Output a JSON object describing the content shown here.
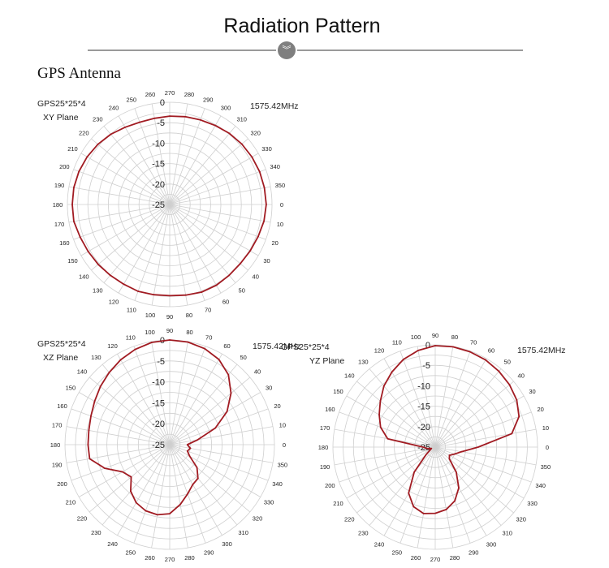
{
  "header": {
    "title": "Radiation Pattern",
    "badge_icon": "double-chevron-down-icon"
  },
  "section": {
    "title": "GPS Antenna"
  },
  "colors": {
    "trace": "#a11b22",
    "grid": "#cfcfcf",
    "header_line": "#9a9a9a"
  },
  "chart_data": [
    {
      "type": "polar",
      "label": "GPS25*25*4",
      "plane": "XY Plane",
      "frequency": "1575.42MHz",
      "radial_ticks": [
        0,
        -5,
        -10,
        -15,
        -20,
        -25
      ],
      "rlim": [
        -25,
        0
      ],
      "angle_ticks": [
        0,
        10,
        20,
        30,
        40,
        50,
        60,
        70,
        80,
        90,
        100,
        110,
        120,
        130,
        140,
        150,
        160,
        170,
        180,
        190,
        200,
        210,
        220,
        230,
        240,
        250,
        260,
        270,
        280,
        290,
        300,
        310,
        320,
        330,
        340,
        350
      ],
      "angle_orientation": "0 at right, increasing clockwise",
      "grid": true,
      "series": [
        {
          "angles": [
            0,
            10,
            20,
            30,
            40,
            50,
            60,
            70,
            80,
            90,
            100,
            110,
            120,
            130,
            140,
            150,
            160,
            170,
            180,
            190,
            200,
            210,
            220,
            230,
            240,
            250,
            260,
            270,
            280,
            290,
            300,
            310,
            320,
            330,
            340,
            350
          ],
          "gain_dbi": [
            -1.4,
            -1.6,
            -2.0,
            -2.3,
            -2.5,
            -2.4,
            -2.2,
            -2.2,
            -2.5,
            -2.7,
            -2.6,
            -2.4,
            -2.5,
            -2.4,
            -2.2,
            -2.0,
            -1.7,
            -1.2,
            -1.2,
            -1.2,
            -1.4,
            -1.7,
            -2.1,
            -2.6,
            -3.2,
            -3.6,
            -3.6,
            -3.4,
            -3.2,
            -3.0,
            -2.7,
            -2.3,
            -2.0,
            -1.8,
            -1.6,
            -1.5
          ]
        }
      ]
    },
    {
      "type": "polar",
      "label": "GPS25*25*4",
      "plane": "XZ Plane",
      "frequency": "1575.42MHz",
      "radial_ticks": [
        0,
        -5,
        -10,
        -15,
        -20,
        -25
      ],
      "rlim": [
        -25,
        0
      ],
      "angle_ticks": [
        0,
        10,
        20,
        30,
        40,
        50,
        60,
        70,
        80,
        90,
        100,
        110,
        120,
        130,
        140,
        150,
        160,
        170,
        180,
        190,
        200,
        210,
        220,
        230,
        240,
        250,
        260,
        270,
        280,
        290,
        300,
        310,
        320,
        330,
        340,
        350
      ],
      "angle_orientation": "0 at right, increasing counter-clockwise",
      "grid": true,
      "series": [
        {
          "angles": [
            0,
            10,
            20,
            30,
            40,
            50,
            60,
            70,
            80,
            90,
            100,
            110,
            120,
            130,
            140,
            150,
            160,
            170,
            180,
            190,
            200,
            210,
            220,
            230,
            240,
            250,
            260,
            270,
            280,
            290,
            300,
            310,
            320,
            330,
            340,
            350
          ],
          "gain_dbi": [
            -20.8,
            -18.2,
            -13.4,
            -9.2,
            -5.9,
            -3.2,
            -1.5,
            -0.6,
            -0.1,
            0.0,
            -0.2,
            -0.8,
            -1.6,
            -2.5,
            -3.4,
            -4.3,
            -5.0,
            -5.4,
            -5.5,
            -5.6,
            -8.5,
            -12.0,
            -13.0,
            -10.5,
            -9.0,
            -8.2,
            -8.0,
            -8.5,
            -10.5,
            -12.5,
            -14.0,
            -14.5,
            -16.5,
            -19.5,
            -20.5,
            -20.0
          ]
        }
      ]
    },
    {
      "type": "polar",
      "label": "GPS25*25*4",
      "plane": "YZ Plane",
      "frequency": "1575.42MHz",
      "radial_ticks": [
        0,
        -5,
        -10,
        -15,
        -20,
        -25
      ],
      "rlim": [
        -25,
        0
      ],
      "angle_ticks": [
        0,
        10,
        20,
        30,
        40,
        50,
        60,
        70,
        80,
        90,
        100,
        110,
        120,
        130,
        140,
        150,
        160,
        170,
        180,
        190,
        200,
        210,
        220,
        230,
        240,
        250,
        260,
        270,
        280,
        290,
        300,
        310,
        320,
        330,
        340,
        350
      ],
      "angle_orientation": "0 at right, increasing counter-clockwise",
      "grid": true,
      "series": [
        {
          "angles": [
            0,
            10,
            20,
            30,
            40,
            50,
            60,
            70,
            80,
            90,
            100,
            110,
            120,
            130,
            140,
            150,
            160,
            170,
            180,
            190,
            200,
            210,
            220,
            230,
            240,
            250,
            260,
            270,
            280,
            290,
            300,
            310,
            320,
            330,
            340,
            350
          ],
          "gain_dbi": [
            -14.5,
            -6.0,
            -3.2,
            -2.0,
            -1.3,
            -0.8,
            -0.4,
            -0.2,
            -0.1,
            -0.2,
            -1.0,
            -2.2,
            -3.8,
            -5.5,
            -7.5,
            -9.2,
            -10.8,
            -13.2,
            -22.0,
            -23.0,
            -24.0,
            -23.5,
            -22.0,
            -17.0,
            -12.0,
            -9.5,
            -8.5,
            -8.8,
            -9.5,
            -11.0,
            -13.5,
            -17.0,
            -20.5,
            -21.0,
            -20.0,
            -18.5
          ]
        }
      ]
    }
  ]
}
